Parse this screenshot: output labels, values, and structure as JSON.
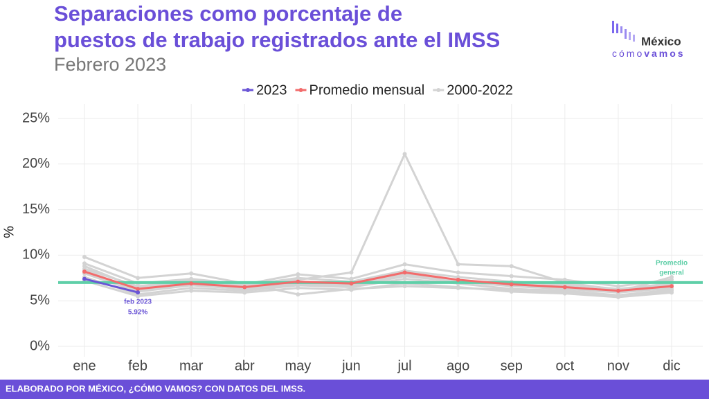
{
  "chart_data": {
    "type": "line",
    "title": [
      "Separaciones como porcentaje de",
      "puestos de trabajo registrados ante el IMSS"
    ],
    "subtitle": "Febrero 2023",
    "y_label": "%",
    "logo": {
      "top": "México",
      "bottom_a": "cómo",
      "bottom_b": "vamos"
    },
    "footer": "ELABORADO POR MÉXICO, ¿CÓMO VAMOS? CON DATOS DEL IMSS.",
    "categories": [
      "ene",
      "feb",
      "mar",
      "abr",
      "may",
      "jun",
      "jul",
      "ago",
      "sep",
      "oct",
      "nov",
      "dic"
    ],
    "series": [
      {
        "name": "2023",
        "color": "#6a55d6",
        "values": [
          7.4,
          5.92,
          null,
          null,
          null,
          null,
          null,
          null,
          null,
          null,
          null,
          null
        ]
      },
      {
        "name": "Promedio mensual",
        "color": "#f26b6b",
        "values": [
          8.2,
          6.3,
          6.9,
          6.5,
          7.1,
          6.9,
          8.1,
          7.3,
          6.8,
          6.5,
          6.1,
          6.6
        ]
      },
      {
        "name": "2000-2022",
        "color": "#d3d3d3",
        "values": [
          [
            9.8,
            7.5,
            8.0,
            6.9,
            5.7,
            6.3,
            6.6,
            6.4,
            6.2,
            6.0,
            5.6,
            6.1
          ],
          [
            8.5,
            6.6,
            7.2,
            6.6,
            7.3,
            8.1,
            21.1,
            9.0,
            8.8,
            7.0,
            6.2,
            6.8
          ],
          [
            9.1,
            6.9,
            7.4,
            6.8,
            7.9,
            7.4,
            9.0,
            8.1,
            7.7,
            7.3,
            6.6,
            7.3
          ],
          [
            7.6,
            5.7,
            6.4,
            6.1,
            6.7,
            6.5,
            7.4,
            6.9,
            6.3,
            6.1,
            5.6,
            6.2
          ],
          [
            8.0,
            6.0,
            6.7,
            6.3,
            6.9,
            6.6,
            7.7,
            7.1,
            6.6,
            6.3,
            5.9,
            6.4
          ],
          [
            8.8,
            6.4,
            7.0,
            6.7,
            7.5,
            7.1,
            8.3,
            7.6,
            7.1,
            6.8,
            6.3,
            6.9
          ],
          [
            7.2,
            5.5,
            6.1,
            5.9,
            6.4,
            6.2,
            6.9,
            6.5,
            6.0,
            5.8,
            5.4,
            5.9
          ],
          [
            8.3,
            6.2,
            6.8,
            6.4,
            7.0,
            6.8,
            7.9,
            7.2,
            6.8,
            6.6,
            6.0,
            7.6
          ]
        ]
      }
    ],
    "reference_line": {
      "value": 7.0,
      "color": "#5fcfa8",
      "label": [
        "Promedio",
        "general"
      ]
    },
    "annotation": {
      "category": 1,
      "lines": [
        "feb 2023",
        "5.92%"
      ]
    },
    "ylim": [
      0,
      26
    ],
    "yticks": [
      {
        "value": 0,
        "label": "0%"
      },
      {
        "value": 5,
        "label": "5%"
      },
      {
        "value": 10,
        "label": "10%"
      },
      {
        "value": 15,
        "label": "15%"
      },
      {
        "value": 20,
        "label": "20%"
      },
      {
        "value": 25,
        "label": "25%"
      }
    ],
    "grid": true,
    "legend": "top"
  }
}
